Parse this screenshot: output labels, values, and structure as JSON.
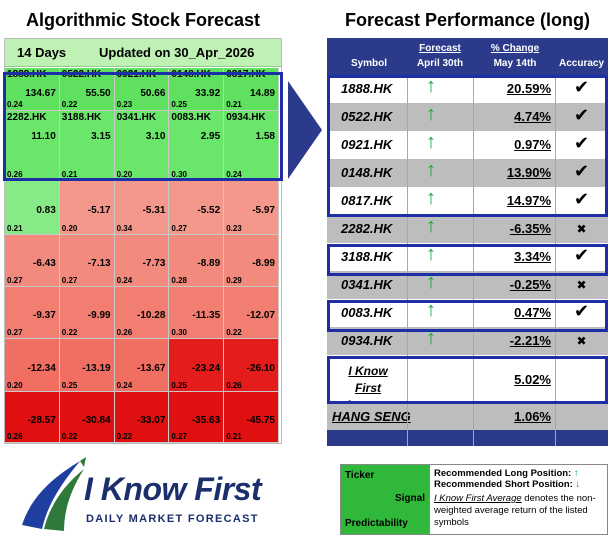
{
  "left_title": "Algorithmic Stock Forecast",
  "right_title": "Forecast Performance (long)",
  "heatmap": {
    "period": "14 Days",
    "updated": "Updated on 30_Apr_2026",
    "cells": [
      {
        "symbol": "1888.HK",
        "signal": "134.67",
        "predictability": "0.24",
        "color": "#5fe05f"
      },
      {
        "symbol": "0522.HK",
        "signal": "55.50",
        "predictability": "0.22",
        "color": "#5fe05f"
      },
      {
        "symbol": "0921.HK",
        "signal": "50.66",
        "predictability": "0.23",
        "color": "#5fe05f"
      },
      {
        "symbol": "0148.HK",
        "signal": "33.92",
        "predictability": "0.25",
        "color": "#5fe05f"
      },
      {
        "symbol": "0817.HK",
        "signal": "14.89",
        "predictability": "0.21",
        "color": "#5fe05f"
      },
      {
        "symbol": "2282.HK",
        "signal": "11.10",
        "predictability": "0.26",
        "color": "#6ae66a"
      },
      {
        "symbol": "3188.HK",
        "signal": "3.15",
        "predictability": "0.21",
        "color": "#6ae66a"
      },
      {
        "symbol": "0341.HK",
        "signal": "3.10",
        "predictability": "0.20",
        "color": "#6ae66a"
      },
      {
        "symbol": "0083.HK",
        "signal": "2.95",
        "predictability": "0.30",
        "color": "#6ae66a"
      },
      {
        "symbol": "0934.HK",
        "signal": "1.58",
        "predictability": "0.24",
        "color": "#6ae66a"
      },
      {
        "symbol": "",
        "signal": "0.83",
        "predictability": "0.21",
        "color": "#86ea86"
      },
      {
        "symbol": "",
        "signal": "-5.17",
        "predictability": "0.20",
        "color": "#f4988c"
      },
      {
        "symbol": "",
        "signal": "-5.31",
        "predictability": "0.34",
        "color": "#f4988c"
      },
      {
        "symbol": "",
        "signal": "-5.52",
        "predictability": "0.27",
        "color": "#f4988c"
      },
      {
        "symbol": "",
        "signal": "-5.97",
        "predictability": "0.23",
        "color": "#f4988c"
      },
      {
        "symbol": "",
        "signal": "-6.43",
        "predictability": "0.27",
        "color": "#f38a7e"
      },
      {
        "symbol": "",
        "signal": "-7.13",
        "predictability": "0.27",
        "color": "#f38a7e"
      },
      {
        "symbol": "",
        "signal": "-7.73",
        "predictability": "0.24",
        "color": "#f38a7e"
      },
      {
        "symbol": "",
        "signal": "-8.89",
        "predictability": "0.28",
        "color": "#f38a7e"
      },
      {
        "symbol": "",
        "signal": "-8.99",
        "predictability": "0.29",
        "color": "#f38a7e"
      },
      {
        "symbol": "",
        "signal": "-9.37",
        "predictability": "0.27",
        "color": "#f27e72"
      },
      {
        "symbol": "",
        "signal": "-9.99",
        "predictability": "0.22",
        "color": "#f27e72"
      },
      {
        "symbol": "",
        "signal": "-10.28",
        "predictability": "0.26",
        "color": "#f27e72"
      },
      {
        "symbol": "",
        "signal": "-11.35",
        "predictability": "0.30",
        "color": "#f27e72"
      },
      {
        "symbol": "",
        "signal": "-12.07",
        "predictability": "0.22",
        "color": "#f27e72"
      },
      {
        "symbol": "",
        "signal": "-12.34",
        "predictability": "0.20",
        "color": "#f06e62"
      },
      {
        "symbol": "",
        "signal": "-13.19",
        "predictability": "0.25",
        "color": "#f06e62"
      },
      {
        "symbol": "",
        "signal": "-13.67",
        "predictability": "0.24",
        "color": "#f06e62"
      },
      {
        "symbol": "",
        "signal": "-23.24",
        "predictability": "0.25",
        "color": "#e41c1c"
      },
      {
        "symbol": "",
        "signal": "-26.10",
        "predictability": "0.26",
        "color": "#e41c1c"
      },
      {
        "symbol": "",
        "signal": "-28.57",
        "predictability": "0.26",
        "color": "#e01010"
      },
      {
        "symbol": "",
        "signal": "-30.84",
        "predictability": "0.22",
        "color": "#e01010"
      },
      {
        "symbol": "",
        "signal": "-33.07",
        "predictability": "0.22",
        "color": "#e01010"
      },
      {
        "symbol": "",
        "signal": "-35.63",
        "predictability": "0.27",
        "color": "#e01010"
      },
      {
        "symbol": "",
        "signal": "-45.75",
        "predictability": "0.21",
        "color": "#e01010"
      }
    ]
  },
  "performance": {
    "headers": {
      "symbol": "Symbol",
      "forecast_line1": "Forecast",
      "forecast_line2": "April 30th",
      "change_line1": "% Change",
      "change_line2": "May 14th",
      "accuracy": "Accuracy"
    },
    "rows": [
      {
        "symbol": "1888.HK",
        "direction": "↑",
        "change": "20.59%",
        "accuracy": "✔",
        "correct": true,
        "bg": "#ffffff"
      },
      {
        "symbol": "0522.HK",
        "direction": "↑",
        "change": "4.74%",
        "accuracy": "✔",
        "correct": true,
        "bg": "#bdbdbd"
      },
      {
        "symbol": "0921.HK",
        "direction": "↑",
        "change": "0.97%",
        "accuracy": "✔",
        "correct": true,
        "bg": "#ffffff"
      },
      {
        "symbol": "0148.HK",
        "direction": "↑",
        "change": "13.90%",
        "accuracy": "✔",
        "correct": true,
        "bg": "#bdbdbd"
      },
      {
        "symbol": "0817.HK",
        "direction": "↑",
        "change": "14.97%",
        "accuracy": "✔",
        "correct": true,
        "bg": "#ffffff"
      },
      {
        "symbol": "2282.HK",
        "direction": "↑",
        "change": "-6.35%",
        "accuracy": "✖",
        "correct": false,
        "bg": "#bdbdbd"
      },
      {
        "symbol": "3188.HK",
        "direction": "↑",
        "change": "3.34%",
        "accuracy": "✔",
        "correct": true,
        "bg": "#ffffff"
      },
      {
        "symbol": "0341.HK",
        "direction": "↑",
        "change": "-0.25%",
        "accuracy": "✖",
        "correct": false,
        "bg": "#bdbdbd"
      },
      {
        "symbol": "0083.HK",
        "direction": "↑",
        "change": "0.47%",
        "accuracy": "✔",
        "correct": true,
        "bg": "#ffffff"
      },
      {
        "symbol": "0934.HK",
        "direction": "↑",
        "change": "-2.21%",
        "accuracy": "✖",
        "correct": false,
        "bg": "#bdbdbd"
      }
    ],
    "average_label_line1": "I Know First",
    "average_label_line2": "Average",
    "average_value": "5.02%",
    "index_label": "HANG SENG",
    "index_value": "1.06%"
  },
  "logo": {
    "name": "I Know First",
    "tagline": "Daily Market Forecast"
  },
  "legend": {
    "ticker": "Ticker",
    "signal": "Signal",
    "predictability": "Predictability",
    "long_label": "Recommended Long Position:",
    "long_arrow": "↑",
    "short_label": "Recommended Short Position:",
    "short_arrow": "↓",
    "note_link": "I Know First Average",
    "note_text": " denotes the non-weighted average return of the listed symbols"
  },
  "colors": {
    "header_blue": "#2b3a8a",
    "box_blue": "#1c2fa6",
    "up_green": "#1aa83a",
    "down_red": "#e02020",
    "legend_green": "#30b83a"
  }
}
